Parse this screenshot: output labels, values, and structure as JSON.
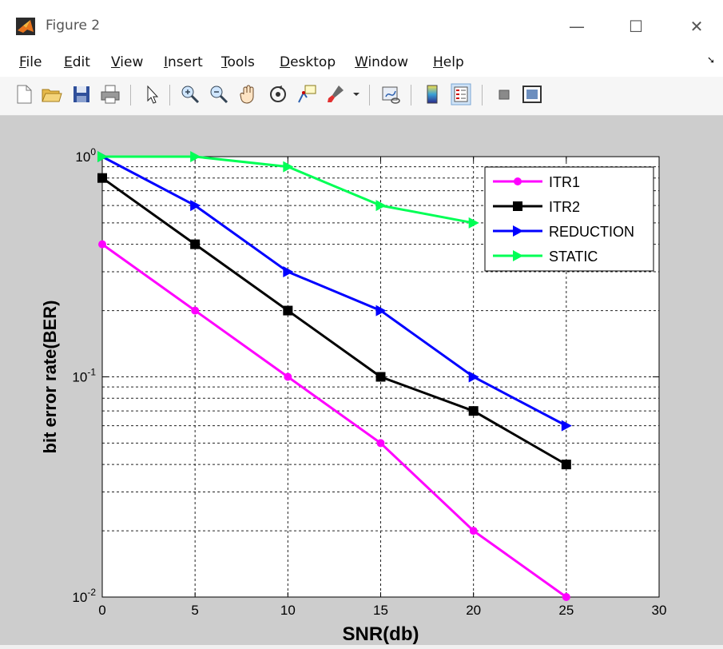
{
  "window": {
    "title": "Figure 2",
    "minimize_glyph": "—",
    "maximize_glyph": "☐",
    "close_glyph": "✕"
  },
  "menu": [
    {
      "label": "File",
      "access": "F",
      "rest": "ile"
    },
    {
      "label": "Edit",
      "access": "E",
      "rest": "dit"
    },
    {
      "label": "View",
      "access": "V",
      "rest": "iew"
    },
    {
      "label": "Insert",
      "access": "I",
      "rest": "nsert"
    },
    {
      "label": "Tools",
      "access": "T",
      "rest": "ools"
    },
    {
      "label": "Desktop",
      "access": "D",
      "rest": "esktop"
    },
    {
      "label": "Window",
      "access": "W",
      "rest": "indow"
    },
    {
      "label": "Help",
      "access": "H",
      "rest": "elp"
    }
  ],
  "toolbar_icons": [
    "new-figure-icon",
    "open-file-icon",
    "save-icon",
    "print-icon",
    "arrow-pointer-icon",
    "zoom-in-icon",
    "zoom-out-icon",
    "pan-hand-icon",
    "rotate-3d-icon",
    "data-cursor-icon",
    "brush-icon",
    "link-plot-icon",
    "colorbar-icon",
    "legend-icon",
    "hide-plot-tools-icon",
    "show-plot-tools-icon"
  ],
  "chart_data": {
    "type": "line",
    "xlabel": "SNR(db)",
    "ylabel": "bit error rate(BER)",
    "yscale": "log",
    "xlim": [
      0,
      30
    ],
    "ylim": [
      0.01,
      1
    ],
    "xticks": [
      "0",
      "5",
      "10",
      "15",
      "20",
      "25",
      "30"
    ],
    "yticks": [
      {
        "base": "10",
        "exp": "0"
      },
      {
        "base": "10",
        "exp": "-1"
      },
      {
        "base": "10",
        "exp": "-2"
      }
    ],
    "grid": true,
    "legend_position": "top-right",
    "series": [
      {
        "name": "ITR1",
        "color": "#ff00ff",
        "marker": "dot",
        "x": [
          0,
          5,
          10,
          15,
          20,
          25
        ],
        "y": [
          0.4,
          0.2,
          0.1,
          0.05,
          0.02,
          0.01
        ]
      },
      {
        "name": "ITR2",
        "color": "#000000",
        "marker": "square",
        "x": [
          0,
          5,
          10,
          15,
          20,
          25
        ],
        "y": [
          0.8,
          0.4,
          0.2,
          0.1,
          0.07,
          0.04
        ]
      },
      {
        "name": "REDUCTION",
        "color": "#0000ff",
        "marker": "triangle-right",
        "x": [
          0,
          5,
          10,
          15,
          20,
          25
        ],
        "y": [
          1.0,
          0.6,
          0.3,
          0.2,
          0.1,
          0.06
        ]
      },
      {
        "name": "STATIC",
        "color": "#00ff55",
        "marker": "triangle-right",
        "x": [
          0,
          5,
          10,
          15,
          20
        ],
        "y": [
          1.0,
          1.0,
          0.9,
          0.6,
          0.5
        ]
      }
    ]
  }
}
